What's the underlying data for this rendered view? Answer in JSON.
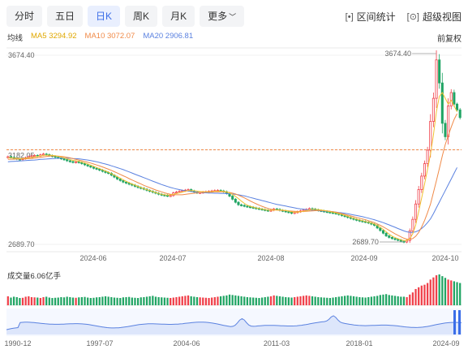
{
  "tabs": [
    {
      "label": "分时",
      "active": false
    },
    {
      "label": "五日",
      "active": false
    },
    {
      "label": "日K",
      "active": true
    },
    {
      "label": "周K",
      "active": false
    },
    {
      "label": "月K",
      "active": false
    },
    {
      "label": "更多",
      "active": false
    }
  ],
  "tools": {
    "range_stats": "区间统计",
    "super_view": "超级视图"
  },
  "legend": {
    "ticker": "均线",
    "ma5": "MA5 3294.92",
    "ma10": "MA10 3072.07",
    "ma20": "MA20 2906.81"
  },
  "adjust": "前复权",
  "volume_label": "成交量6.06亿手",
  "colors": {
    "up": "#f0404a",
    "down": "#21a564",
    "ma5": "#f1c232",
    "ma10": "#f08a48",
    "ma20": "#5b82e0",
    "accent": "#3b6ee8"
  },
  "chart_data": {
    "type": "candlestick",
    "y_labels": {
      "top": "3674.40",
      "mid": "3182.05",
      "bottom": "2689.70"
    },
    "ylim": [
      2689.7,
      3674.4
    ],
    "reference_line": 3182.05,
    "annotations": {
      "high": "3674.40",
      "low": "2689.70"
    },
    "x_labels": [
      "2024-06",
      "2024-07",
      "2024-08",
      "2024-09",
      "2024-10"
    ],
    "close": [
      3146,
      3142,
      3138,
      3134,
      3132,
      3136,
      3141,
      3146,
      3150,
      3153,
      3150,
      3156,
      3160,
      3157,
      3152,
      3148,
      3144,
      3140,
      3135,
      3131,
      3125,
      3121,
      3117,
      3120,
      3116,
      3110,
      3104,
      3098,
      3092,
      3086,
      3082,
      3076,
      3070,
      3064,
      3060,
      3050,
      3040,
      3030,
      3022,
      3014,
      3009,
      3003,
      2998,
      2992,
      2986,
      2982,
      2977,
      2971,
      2966,
      2961,
      2956,
      2951,
      2947,
      2945,
      2942,
      2944,
      2958,
      2962,
      2966,
      2969,
      2972,
      2975,
      2968,
      2962,
      2958,
      2960,
      2962,
      2964,
      2966,
      2968,
      2970,
      2971,
      2968,
      2964,
      2955,
      2941,
      2925,
      2909,
      2896,
      2893,
      2889,
      2886,
      2883,
      2880,
      2877,
      2874,
      2871,
      2868,
      2865,
      2868,
      2874,
      2872,
      2867,
      2864,
      2860,
      2857,
      2852,
      2856,
      2860,
      2864,
      2868,
      2872,
      2876,
      2874,
      2870,
      2866,
      2864,
      2861,
      2858,
      2856,
      2853,
      2850,
      2845,
      2840,
      2835,
      2830,
      2825,
      2820,
      2816,
      2812,
      2809,
      2806,
      2801,
      2795,
      2789,
      2775,
      2762,
      2748,
      2734,
      2726,
      2720,
      2716,
      2712,
      2706,
      2702,
      2710,
      2760,
      2820,
      2900,
      2975,
      3045,
      3110,
      3180,
      3330,
      3450,
      3650,
      3530,
      3320,
      3250,
      3410,
      3480,
      3420,
      3390,
      3350
    ],
    "ma5": [
      3140,
      3140,
      3139,
      3138,
      3136,
      3137,
      3138,
      3140,
      3142,
      3145,
      3148,
      3150,
      3153,
      3154,
      3154,
      3153,
      3151,
      3148,
      3144,
      3140,
      3135,
      3131,
      3127,
      3125,
      3122,
      3118,
      3113,
      3108,
      3102,
      3096,
      3090,
      3084,
      3078,
      3072,
      3066,
      3058,
      3050,
      3042,
      3034,
      3026,
      3018,
      3011,
      3004,
      2998,
      2992,
      2986,
      2981,
      2975,
      2970,
      2965,
      2960,
      2955,
      2951,
      2948,
      2946,
      2947,
      2950,
      2954,
      2958,
      2962,
      2966,
      2970,
      2970,
      2969,
      2967,
      2965,
      2964,
      2964,
      2964,
      2965,
      2966,
      2967,
      2967,
      2966,
      2963,
      2958,
      2950,
      2940,
      2928,
      2915,
      2903,
      2894,
      2888,
      2884,
      2880,
      2877,
      2874,
      2871,
      2868,
      2867,
      2868,
      2869,
      2869,
      2868,
      2866,
      2863,
      2859,
      2857,
      2857,
      2859,
      2862,
      2865,
      2869,
      2872,
      2872,
      2871,
      2869,
      2866,
      2863,
      2860,
      2857,
      2854,
      2850,
      2846,
      2841,
      2836,
      2831,
      2826,
      2821,
      2817,
      2813,
      2809,
      2805,
      2801,
      2796,
      2788,
      2779,
      2768,
      2755,
      2743,
      2733,
      2725,
      2719,
      2714,
      2710,
      2710,
      2720,
      2745,
      2790,
      2860,
      2930,
      3005,
      3080,
      3160,
      3260,
      3380,
      3460,
      3480,
      3450,
      3420,
      3440,
      3410,
      3380,
      3340,
      3295
    ],
    "ma10": [
      3132,
      3133,
      3133,
      3134,
      3134,
      3134,
      3135,
      3136,
      3137,
      3139,
      3141,
      3143,
      3145,
      3147,
      3149,
      3150,
      3150,
      3149,
      3148,
      3146,
      3143,
      3140,
      3136,
      3132,
      3129,
      3125,
      3121,
      3117,
      3113,
      3108,
      3103,
      3098,
      3093,
      3087,
      3081,
      3075,
      3068,
      3061,
      3054,
      3047,
      3040,
      3032,
      3025,
      3018,
      3011,
      3004,
      2997,
      2991,
      2985,
      2979,
      2973,
      2968,
      2963,
      2958,
      2954,
      2951,
      2949,
      2948,
      2948,
      2948,
      2950,
      2952,
      2954,
      2956,
      2958,
      2960,
      2961,
      2962,
      2962,
      2962,
      2963,
      2963,
      2963,
      2963,
      2962,
      2960,
      2957,
      2952,
      2946,
      2939,
      2932,
      2924,
      2916,
      2908,
      2901,
      2894,
      2888,
      2882,
      2877,
      2873,
      2870,
      2868,
      2867,
      2866,
      2865,
      2864,
      2863,
      2862,
      2861,
      2861,
      2861,
      2862,
      2863,
      2864,
      2865,
      2866,
      2866,
      2865,
      2864,
      2862,
      2860,
      2857,
      2854,
      2850,
      2846,
      2842,
      2838,
      2834,
      2830,
      2826,
      2822,
      2818,
      2813,
      2808,
      2803,
      2796,
      2789,
      2781,
      2772,
      2763,
      2754,
      2745,
      2737,
      2729,
      2722,
      2717,
      2716,
      2720,
      2732,
      2752,
      2780,
      2815,
      2855,
      2900,
      2960,
      3020,
      3085,
      3150,
      3210,
      3255,
      3300,
      3340,
      3370,
      3390,
      3395,
      3072
    ],
    "ma20": [
      3120,
      3121,
      3122,
      3123,
      3124,
      3125,
      3126,
      3127,
      3128,
      3129,
      3130,
      3132,
      3133,
      3134,
      3135,
      3136,
      3137,
      3138,
      3139,
      3139,
      3139,
      3138,
      3137,
      3136,
      3135,
      3133,
      3131,
      3129,
      3126,
      3123,
      3120,
      3116,
      3112,
      3108,
      3104,
      3099,
      3094,
      3089,
      3084,
      3079,
      3073,
      3067,
      3061,
      3055,
      3049,
      3043,
      3037,
      3031,
      3025,
      3019,
      3013,
      3007,
      3001,
      2996,
      2991,
      2986,
      2982,
      2978,
      2975,
      2972,
      2969,
      2967,
      2965,
      2963,
      2961,
      2960,
      2959,
      2958,
      2957,
      2957,
      2956,
      2956,
      2955,
      2955,
      2954,
      2953,
      2952,
      2950,
      2948,
      2945,
      2942,
      2938,
      2934,
      2930,
      2926,
      2922,
      2918,
      2914,
      2910,
      2906,
      2902,
      2898,
      2895,
      2892,
      2889,
      2886,
      2883,
      2880,
      2877,
      2875,
      2873,
      2871,
      2869,
      2867,
      2866,
      2865,
      2864,
      2863,
      2862,
      2861,
      2860,
      2858,
      2856,
      2854,
      2852,
      2849,
      2846,
      2843,
      2840,
      2837,
      2834,
      2830,
      2826,
      2822,
      2818,
      2813,
      2808,
      2803,
      2797,
      2791,
      2785,
      2779,
      2772,
      2766,
      2760,
      2755,
      2752,
      2752,
      2755,
      2762,
      2772,
      2786,
      2803,
      2823,
      2850,
      2880,
      2910,
      2940,
      2970,
      3000,
      3030,
      3060,
      3090,
      3120,
      3150,
      2907
    ],
    "volume": [
      210,
      180,
      200,
      190,
      170,
      175,
      200,
      210,
      190,
      185,
      180,
      170,
      190,
      200,
      180,
      170,
      175,
      180,
      190,
      185,
      200,
      190,
      180,
      175,
      185,
      190,
      195,
      180,
      170,
      175,
      185,
      190,
      200,
      210,
      200,
      190,
      180,
      175,
      170,
      185,
      190,
      195,
      180,
      175,
      170,
      185,
      190,
      200,
      210,
      220,
      200,
      190,
      185,
      180,
      175,
      170,
      180,
      190,
      200,
      210,
      220,
      230,
      210,
      200,
      190,
      185,
      180,
      175,
      170,
      180,
      190,
      200,
      210,
      220,
      230,
      250,
      240,
      230,
      220,
      210,
      200,
      190,
      185,
      180,
      175,
      170,
      180,
      190,
      200,
      210,
      230,
      220,
      210,
      200,
      190,
      185,
      180,
      190,
      200,
      210,
      220,
      230,
      220,
      210,
      200,
      190,
      185,
      180,
      175,
      170,
      180,
      190,
      200,
      210,
      220,
      230,
      220,
      210,
      200,
      190,
      185,
      180,
      190,
      200,
      210,
      220,
      240,
      250,
      260,
      240,
      230,
      220,
      210,
      200,
      200,
      190,
      250,
      300,
      380,
      420,
      460,
      480,
      520,
      600,
      650,
      700,
      720,
      680,
      640,
      600,
      580,
      560,
      540,
      520
    ],
    "history_x_labels": [
      "1990-12",
      "1997-07",
      "2004-06",
      "2011-03",
      "2018-01",
      "2024-09"
    ]
  }
}
